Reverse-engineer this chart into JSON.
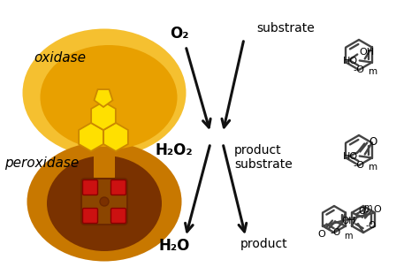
{
  "bg": "#ffffff",
  "ox_outer": "#F5C030",
  "ox_inner": "#E8A000",
  "per_outer": "#C87800",
  "per_inner": "#7A3200",
  "per_core": "#8B4500",
  "fad_yellow": "#FFE000",
  "fad_edge": "#CC8800",
  "heme_red": "#CC1111",
  "heme_edge": "#880000",
  "connector_col": "#C87800",
  "arrow_col": "#111111",
  "struct_col": "#444444",
  "text_col": "#000000",
  "ox_label": "oxidase",
  "per_label": "peroxidase",
  "o2": "O₂",
  "h2o2": "H₂O₂",
  "h2o": "H₂O",
  "substrate": "substrate",
  "prod_sub": "product\nsubstrate",
  "product": "product"
}
